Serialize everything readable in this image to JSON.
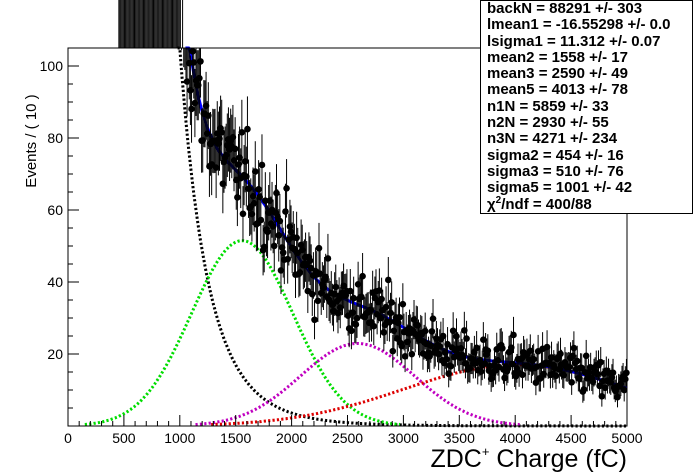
{
  "chart_data": {
    "type": "scatter",
    "xlabel": "ZDC",
    "xlabel_superscript": "+",
    "xlabel_suffix": " Charge (fC)",
    "ylabel": "Events / ( 10 )",
    "xlim": [
      0,
      5000
    ],
    "ylim": [
      0,
      105
    ],
    "x_ticks": [
      "0",
      "500",
      "1000",
      "1500",
      "2000",
      "2500",
      "3000",
      "3500",
      "4000",
      "4500",
      "5000"
    ],
    "y_ticks": [
      "20",
      "40",
      "60",
      "80",
      "100"
    ],
    "grid": false,
    "data_series": {
      "marker": "filled-circle",
      "error_bars": true,
      "color": "#000000"
    },
    "fit_components": [
      {
        "role": "total fit",
        "color": "#0000ff",
        "style": "solid"
      },
      {
        "role": "background",
        "color": "#000000",
        "style": "dotted",
        "backN": 88291,
        "lmean": -16.55298,
        "lsigma": 11.312
      },
      {
        "role": "peak 1",
        "color": "#00dd00",
        "style": "dotted",
        "mean": 1558,
        "sigma": 454,
        "N": 5859
      },
      {
        "role": "peak 2",
        "color": "#c000c0",
        "style": "dotted",
        "mean": 2590,
        "sigma": 510,
        "N": 2930
      },
      {
        "role": "peak 3",
        "color": "#dd0000",
        "style": "dotted",
        "mean": 4013,
        "sigma": 1001,
        "N": 4271
      }
    ],
    "stats": [
      {
        "text": "backN =  88291 +/- 303"
      },
      {
        "text": "lmean1 = -16.55298 +/- 0.0"
      },
      {
        "text": "lsigma1 =  11.312 +/- 0.07"
      },
      {
        "text": "mean2 =  1558 +/- 17"
      },
      {
        "text": "mean3 =  2590 +/- 49"
      },
      {
        "text": "mean5 =  4013 +/- 78"
      },
      {
        "text": "n1N =  5859 +/- 33"
      },
      {
        "text": "n2N =  2930 +/- 55"
      },
      {
        "text": "n3N =  4271 +/- 234"
      },
      {
        "text": "sigma2 =  454 +/- 16"
      },
      {
        "text": "sigma3 =  510 +/- 76"
      },
      {
        "text": "sigma5 =  1001 +/- 42"
      }
    ],
    "chi2": {
      "symbol": "χ",
      "exp": "2",
      "text": "/ndf = 400/88"
    }
  }
}
